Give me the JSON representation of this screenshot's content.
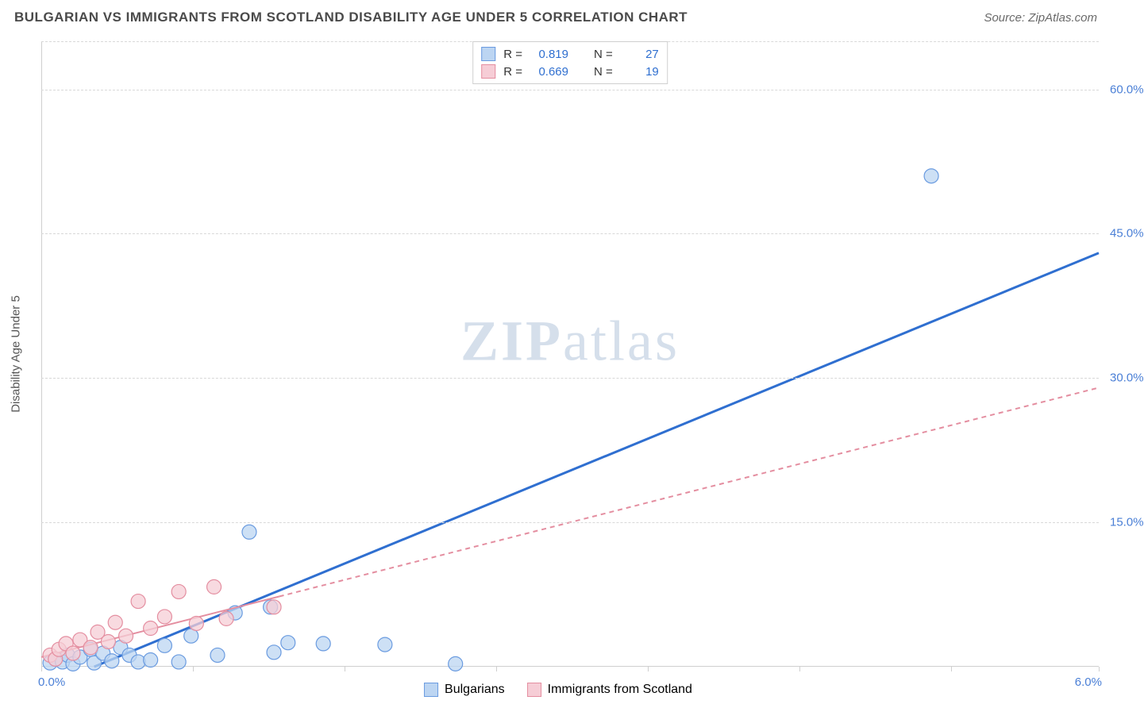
{
  "header": {
    "title": "BULGARIAN VS IMMIGRANTS FROM SCOTLAND DISABILITY AGE UNDER 5 CORRELATION CHART",
    "source": "Source: ZipAtlas.com"
  },
  "watermark": {
    "prefix": "ZIP",
    "suffix": "atlas"
  },
  "chart": {
    "type": "scatter",
    "ylabel": "Disability Age Under 5",
    "background_color": "#ffffff",
    "grid_color": "#d8d8d8",
    "xlim": [
      0.0,
      6.0
    ],
    "ylim": [
      0.0,
      65.0
    ],
    "yticks": [
      15.0,
      30.0,
      45.0,
      60.0
    ],
    "ytick_labels": [
      "15.0%",
      "30.0%",
      "45.0%",
      "60.0%"
    ],
    "ytick_color": "#4a7fd6",
    "xtick_positions": [
      0.0,
      0.86,
      1.72,
      2.58,
      3.44,
      4.3,
      5.16,
      6.0
    ],
    "x_origin_label": "0.0%",
    "x_end_label": "6.0%",
    "x_label_color": "#4a7fd6",
    "marker_radius": 9,
    "marker_stroke_width": 1.2,
    "series": [
      {
        "id": "bulgarians",
        "label": "Bulgarians",
        "R": "0.819",
        "N": "27",
        "fill": "#bcd5f2",
        "stroke": "#6a9be0",
        "line_color": "#2f6fd0",
        "line_width": 3,
        "line_dash": "none",
        "trend": {
          "x1": 0.3,
          "y1": 0.0,
          "x2": 6.0,
          "y2": 43.0
        },
        "points": [
          [
            0.05,
            0.4
          ],
          [
            0.08,
            0.8
          ],
          [
            0.12,
            0.5
          ],
          [
            0.15,
            1.2
          ],
          [
            0.18,
            0.3
          ],
          [
            0.22,
            1.0
          ],
          [
            0.28,
            1.8
          ],
          [
            0.3,
            0.4
          ],
          [
            0.35,
            1.4
          ],
          [
            0.4,
            0.6
          ],
          [
            0.45,
            2.0
          ],
          [
            0.5,
            1.2
          ],
          [
            0.55,
            0.5
          ],
          [
            0.62,
            0.7
          ],
          [
            0.7,
            2.2
          ],
          [
            0.78,
            0.5
          ],
          [
            0.85,
            3.2
          ],
          [
            1.0,
            1.2
          ],
          [
            1.1,
            5.6
          ],
          [
            1.18,
            14.0
          ],
          [
            1.3,
            6.2
          ],
          [
            1.4,
            2.5
          ],
          [
            1.6,
            2.4
          ],
          [
            1.95,
            2.3
          ],
          [
            2.35,
            0.3
          ],
          [
            1.32,
            1.5
          ],
          [
            5.05,
            51.0
          ]
        ]
      },
      {
        "id": "scotland",
        "label": "Immigrants from Scotland",
        "R": "0.669",
        "N": "19",
        "fill": "#f6cdd6",
        "stroke": "#e48ea0",
        "line_color": "#e48ea0",
        "line_width": 2,
        "line_dash": "6,5",
        "line_solid_until_x": 1.35,
        "trend": {
          "x1": 0.0,
          "y1": 1.0,
          "x2": 6.0,
          "y2": 29.0
        },
        "points": [
          [
            0.05,
            1.2
          ],
          [
            0.08,
            0.8
          ],
          [
            0.1,
            1.8
          ],
          [
            0.14,
            2.4
          ],
          [
            0.18,
            1.4
          ],
          [
            0.22,
            2.8
          ],
          [
            0.28,
            2.0
          ],
          [
            0.32,
            3.6
          ],
          [
            0.38,
            2.6
          ],
          [
            0.42,
            4.6
          ],
          [
            0.48,
            3.2
          ],
          [
            0.55,
            6.8
          ],
          [
            0.62,
            4.0
          ],
          [
            0.7,
            5.2
          ],
          [
            0.78,
            7.8
          ],
          [
            0.88,
            4.5
          ],
          [
            0.98,
            8.3
          ],
          [
            1.05,
            5.0
          ],
          [
            1.32,
            6.2
          ]
        ]
      }
    ]
  },
  "legend_box": {
    "r_label": "R  =",
    "n_label": "N  =",
    "value_color": "#2f6fd0"
  },
  "bottom_legend": {
    "items": [
      {
        "label": "Bulgarians",
        "fill": "#bcd5f2",
        "stroke": "#6a9be0"
      },
      {
        "label": "Immigrants from Scotland",
        "fill": "#f6cdd6",
        "stroke": "#e48ea0"
      }
    ]
  }
}
